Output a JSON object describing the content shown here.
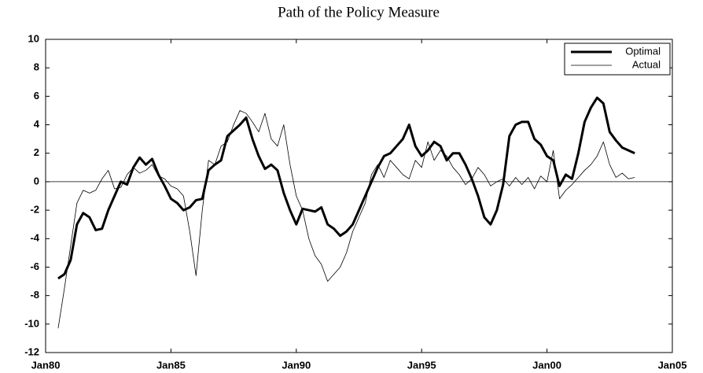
{
  "chart_data": {
    "type": "line",
    "title": "Path of the Policy Measure",
    "x": [
      1980.5,
      1980.75,
      1981,
      1981.25,
      1981.5,
      1981.75,
      1982,
      1982.25,
      1982.5,
      1982.75,
      1983,
      1983.25,
      1983.5,
      1983.75,
      1984,
      1984.25,
      1984.5,
      1984.75,
      1985,
      1985.25,
      1985.5,
      1985.75,
      1986,
      1986.25,
      1986.5,
      1986.75,
      1987,
      1987.25,
      1987.5,
      1987.75,
      1988,
      1988.25,
      1988.5,
      1988.75,
      1989,
      1989.25,
      1989.5,
      1989.75,
      1990,
      1990.25,
      1990.5,
      1990.75,
      1991,
      1991.25,
      1991.5,
      1991.75,
      1992,
      1992.25,
      1992.5,
      1992.75,
      1993,
      1993.25,
      1993.5,
      1993.75,
      1994,
      1994.25,
      1994.5,
      1994.75,
      1995,
      1995.25,
      1995.5,
      1995.75,
      1996,
      1996.25,
      1996.5,
      1996.75,
      1997,
      1997.25,
      1997.5,
      1997.75,
      1998,
      1998.25,
      1998.5,
      1998.75,
      1999,
      1999.25,
      1999.5,
      1999.75,
      2000,
      2000.25,
      2000.5,
      2000.75,
      2001,
      2001.25,
      2001.5,
      2001.75,
      2002,
      2002.25,
      2002.5,
      2002.75,
      2003,
      2003.25,
      2003.5
    ],
    "series": [
      {
        "name": "Optimal",
        "color": "#000000",
        "width": 3,
        "values": [
          -6.8,
          -6.5,
          -5.5,
          -3,
          -2.2,
          -2.5,
          -3.4,
          -3.3,
          -2,
          -1,
          0,
          -0.2,
          1,
          1.7,
          1.2,
          1.6,
          0.5,
          -0.3,
          -1.2,
          -1.5,
          -2,
          -1.8,
          -1.3,
          -1.2,
          0.8,
          1.2,
          1.5,
          3.2,
          3.6,
          4,
          4.5,
          3,
          1.8,
          0.9,
          1.2,
          0.8,
          -0.8,
          -2,
          -3,
          -1.9,
          -2,
          -2.1,
          -1.8,
          -3,
          -3.3,
          -3.8,
          -3.5,
          -3,
          -2,
          -1,
          0,
          1,
          1.8,
          2,
          2.5,
          3,
          4,
          2.5,
          1.8,
          2.2,
          2.8,
          2.5,
          1.5,
          2,
          2,
          1.2,
          0.2,
          -1,
          -2.5,
          -3,
          -2,
          -0.2,
          3.2,
          4,
          4.2,
          4.2,
          3,
          2.6,
          1.8,
          1.5,
          -0.3,
          0.5,
          0.2,
          2,
          4.2,
          5.2,
          5.9,
          5.5,
          3.5,
          2.9,
          2.4,
          2.2,
          2
        ]
      },
      {
        "name": "Actual",
        "color": "#000000",
        "width": 0.8,
        "values": [
          -10.3,
          -7.5,
          -4.5,
          -1.5,
          -0.6,
          -0.8,
          -0.6,
          0.2,
          0.8,
          -0.5,
          -0.4,
          0.5,
          1,
          0.6,
          0.8,
          1.2,
          0.4,
          0.2,
          -0.3,
          -0.5,
          -1,
          -3.5,
          -6.6,
          -2,
          1.5,
          1.2,
          2.5,
          2.8,
          4,
          5,
          4.8,
          4.2,
          3.5,
          4.8,
          3,
          2.5,
          4,
          1.2,
          -1,
          -2,
          -4,
          -5.2,
          -5.8,
          -7,
          -6.5,
          -6,
          -5,
          -3.5,
          -2.5,
          -1.5,
          0.5,
          1.2,
          0.3,
          1.5,
          1,
          0.5,
          0.2,
          1.5,
          1,
          2.8,
          1.5,
          2.2,
          1.8,
          1,
          0.5,
          -0.2,
          0.2,
          1,
          0.5,
          -0.3,
          0,
          0.2,
          -0.3,
          0.3,
          -0.2,
          0.3,
          -0.5,
          0.4,
          0,
          2.2,
          -1.2,
          -0.6,
          -0.2,
          0.3,
          0.8,
          1.2,
          1.8,
          2.8,
          1.2,
          0.3,
          0.6,
          0.2,
          0.3
        ]
      }
    ],
    "xlim": [
      1980,
      2005
    ],
    "xticks": [
      {
        "value": 1980,
        "label": "Jan80"
      },
      {
        "value": 1985,
        "label": "Jan85"
      },
      {
        "value": 1990,
        "label": "Jan90"
      },
      {
        "value": 1995,
        "label": "Jan95"
      },
      {
        "value": 2000,
        "label": "Jan00"
      },
      {
        "value": 2005,
        "label": "Jan05"
      }
    ],
    "ylim": [
      -12,
      10
    ],
    "yticks": [
      -12,
      -10,
      -8,
      -6,
      -4,
      -2,
      0,
      2,
      4,
      6,
      8,
      10
    ],
    "legend": "upper right"
  }
}
